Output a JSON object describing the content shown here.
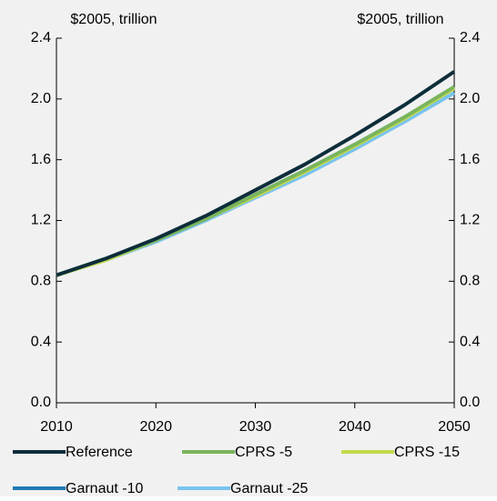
{
  "chart_data": {
    "type": "line",
    "y_label": "$2005, trillion",
    "y2_label": "$2005, trillion",
    "x": [
      2010,
      2015,
      2020,
      2025,
      2030,
      2035,
      2040,
      2045,
      2050
    ],
    "xlim": [
      2010,
      2050
    ],
    "xticks": [
      2010,
      2020,
      2030,
      2040,
      2050
    ],
    "ylim": [
      0,
      2.4
    ],
    "yticks": [
      {
        "value": 0,
        "label": "0.0"
      },
      0.4,
      0.8,
      1.2,
      1.6,
      {
        "value": 2,
        "label": "2.0"
      },
      2.4
    ],
    "y2lim": [
      0,
      2.4
    ],
    "y2ticks": [
      {
        "value": 0,
        "label": "0.0"
      },
      0.4,
      0.8,
      1.2,
      1.6,
      {
        "value": 2,
        "label": "2.0"
      },
      2.4
    ],
    "grid": false,
    "series": [
      {
        "name": "Reference",
        "color": "#0d2d3a",
        "values": [
          0.84,
          0.95,
          1.08,
          1.23,
          1.4,
          1.57,
          1.76,
          1.96,
          2.18
        ]
      },
      {
        "name": "CPRS -5",
        "color": "#7ab55c",
        "values": [
          0.84,
          0.95,
          1.07,
          1.21,
          1.37,
          1.53,
          1.7,
          1.88,
          2.08
        ]
      },
      {
        "name": "CPRS -15",
        "color": "#c5d94a",
        "values": [
          0.84,
          0.94,
          1.07,
          1.21,
          1.36,
          1.52,
          1.69,
          1.87,
          2.07
        ]
      },
      {
        "name": "Garnaut -10",
        "color": "#1f7ab5",
        "values": [
          0.84,
          0.95,
          1.07,
          1.21,
          1.37,
          1.53,
          1.7,
          1.88,
          2.07
        ]
      },
      {
        "name": "Garnaut -25",
        "color": "#79c3ef",
        "values": [
          0.84,
          0.94,
          1.06,
          1.2,
          1.35,
          1.5,
          1.67,
          1.85,
          2.04
        ]
      }
    ]
  }
}
